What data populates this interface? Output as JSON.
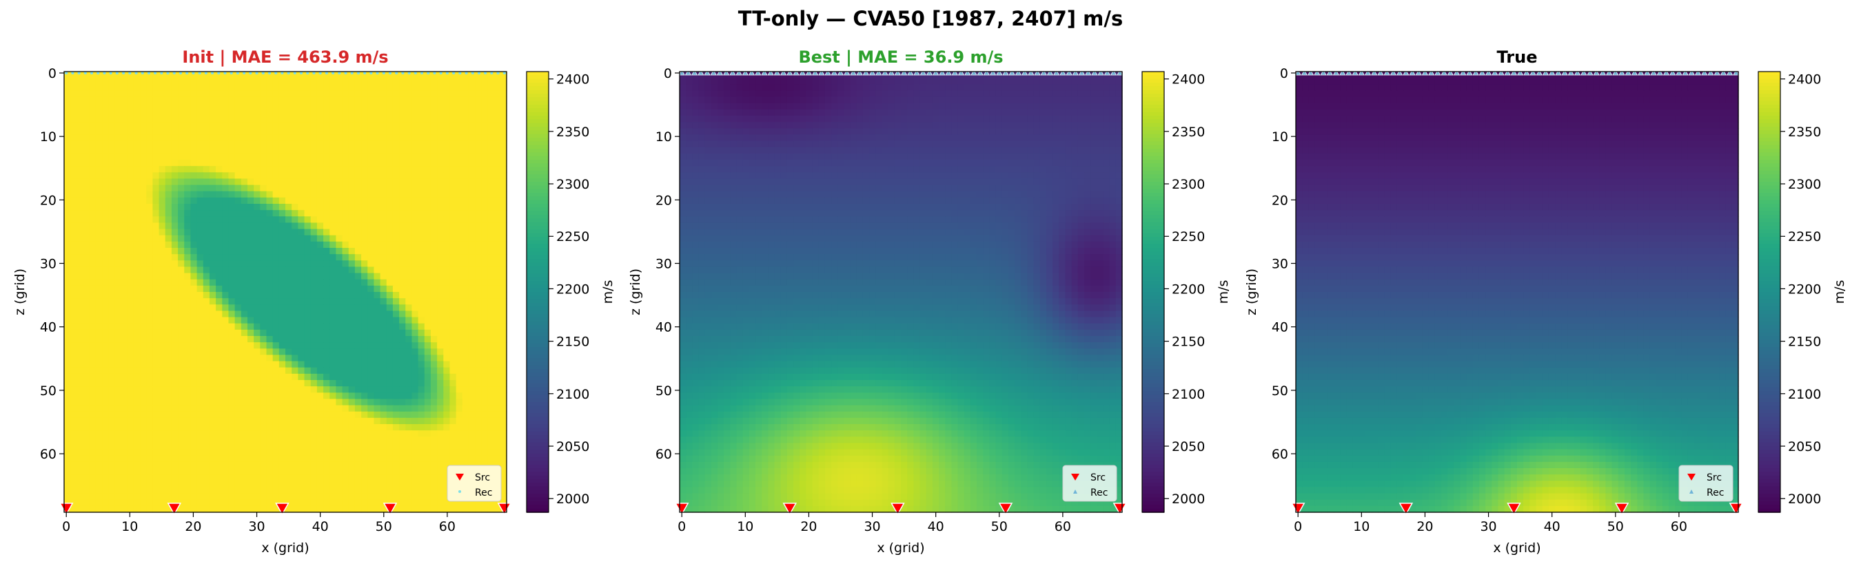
{
  "suptitle": "TT-only — CVA50 [1987, 2407] m/s",
  "colormap": "viridis",
  "chart_data": [
    {
      "type": "heatmap",
      "panel": "init",
      "title": "Init  |  MAE = 463.9 m/s",
      "title_color": "#d62728",
      "xlabel": "x (grid)",
      "ylabel": "z (grid)",
      "xlim": [
        0,
        69
      ],
      "ylim": [
        69,
        0
      ],
      "xticks": [
        "0",
        "10",
        "20",
        "30",
        "40",
        "50",
        "60"
      ],
      "yticks": [
        "0",
        "10",
        "20",
        "30",
        "40",
        "50",
        "60"
      ],
      "colorbar": {
        "label": "m/s",
        "range": [
          1987,
          2407
        ],
        "ticks": [
          "2000",
          "2050",
          "2100",
          "2150",
          "2200",
          "2250",
          "2300",
          "2350",
          "2400"
        ]
      },
      "field": {
        "background": 2407,
        "anomaly": {
          "description_value": 2240,
          "center_x": 38,
          "center_z": 36
        }
      },
      "receivers": {
        "z": 0,
        "count": 70,
        "color": "#7fdfe8",
        "marker": "dot"
      },
      "sources": {
        "z": 69,
        "x": [
          0,
          17,
          34,
          51,
          69
        ],
        "color": "#ff0000",
        "marker": "triangle-down"
      },
      "legend": {
        "position": "bottom-right",
        "entries": [
          "Src",
          "Rec"
        ]
      }
    },
    {
      "type": "heatmap",
      "panel": "best",
      "title": "Best  |  MAE = 36.9 m/s",
      "title_color": "#2ca02c",
      "xlabel": "x (grid)",
      "ylabel": "z (grid)",
      "xlim": [
        0,
        69
      ],
      "ylim": [
        69,
        0
      ],
      "xticks": [
        "0",
        "10",
        "20",
        "30",
        "40",
        "50",
        "60"
      ],
      "yticks": [
        "0",
        "10",
        "20",
        "30",
        "40",
        "50",
        "60"
      ],
      "colorbar": {
        "label": "m/s",
        "range": [
          1987,
          2407
        ],
        "ticks": [
          "2000",
          "2050",
          "2100",
          "2150",
          "2200",
          "2250",
          "2300",
          "2350",
          "2400"
        ]
      },
      "field": {
        "top_value": 2040,
        "bottom_value": 2270,
        "high_center": [
          28,
          62
        ],
        "low_center": [
          66,
          34
        ]
      },
      "receivers": {
        "z": 0,
        "count": 70,
        "color": "#6fb4d8",
        "marker": "triangle-up"
      },
      "sources": {
        "z": 69,
        "x": [
          0,
          17,
          34,
          51,
          69
        ],
        "color": "#ff0000",
        "marker": "triangle-down"
      },
      "legend": {
        "position": "bottom-right",
        "entries": [
          "Src",
          "Rec"
        ]
      }
    },
    {
      "type": "heatmap",
      "panel": "true",
      "title": "True",
      "title_color": "#000000",
      "xlabel": "x (grid)",
      "ylabel": "z (grid)",
      "xlim": [
        0,
        69
      ],
      "ylim": [
        69,
        0
      ],
      "xticks": [
        "0",
        "10",
        "20",
        "30",
        "40",
        "50",
        "60"
      ],
      "yticks": [
        "0",
        "10",
        "20",
        "30",
        "40",
        "50",
        "60"
      ],
      "colorbar": {
        "label": "m/s",
        "range": [
          1987,
          2407
        ],
        "ticks": [
          "2000",
          "2050",
          "2100",
          "2150",
          "2200",
          "2250",
          "2300",
          "2350",
          "2400"
        ]
      },
      "field": {
        "top_value": 2000,
        "bottom_value": 2260,
        "high_center": [
          42,
          69
        ]
      },
      "receivers": {
        "z": 0,
        "count": 70,
        "color": "#6fb4d8",
        "marker": "triangle-up"
      },
      "sources": {
        "z": 69,
        "x": [
          0,
          17,
          34,
          51,
          69
        ],
        "color": "#ff0000",
        "marker": "triangle-down"
      },
      "legend": {
        "position": "bottom-right",
        "entries": [
          "Src",
          "Rec"
        ]
      }
    }
  ]
}
